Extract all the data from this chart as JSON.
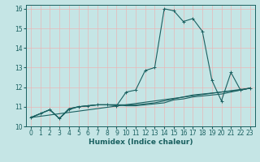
{
  "title": "",
  "xlabel": "Humidex (Indice chaleur)",
  "xlim": [
    -0.5,
    23.5
  ],
  "ylim": [
    10,
    16.2
  ],
  "yticks": [
    10,
    11,
    12,
    13,
    14,
    15,
    16
  ],
  "xticks": [
    0,
    1,
    2,
    3,
    4,
    5,
    6,
    7,
    8,
    9,
    10,
    11,
    12,
    13,
    14,
    15,
    16,
    17,
    18,
    19,
    20,
    21,
    22,
    23
  ],
  "bg_color": "#c5e5e5",
  "line_color": "#1a6060",
  "grid_color_v": "#e8b8b8",
  "grid_color_h": "#d8d0d0",
  "lines": [
    {
      "x": [
        0,
        1,
        2,
        3,
        4,
        5,
        6,
        7,
        8,
        9,
        10,
        11,
        12,
        13,
        14,
        15,
        16,
        17,
        18,
        19,
        20,
        21,
        22,
        23
      ],
      "y": [
        10.45,
        10.65,
        10.85,
        10.4,
        10.85,
        11.0,
        11.05,
        11.1,
        11.1,
        11.05,
        11.75,
        11.85,
        12.85,
        13.0,
        16.0,
        15.9,
        15.35,
        15.5,
        14.85,
        12.35,
        11.3,
        12.75,
        11.85,
        11.95
      ],
      "marker": true
    },
    {
      "x": [
        0,
        1,
        2,
        3,
        4,
        5,
        6,
        7,
        8,
        9,
        10,
        11,
        12,
        13,
        14,
        15,
        16,
        17,
        18,
        19,
        20,
        21,
        22,
        23
      ],
      "y": [
        10.45,
        10.65,
        10.85,
        10.4,
        10.9,
        11.0,
        11.05,
        11.1,
        11.1,
        11.1,
        11.1,
        11.1,
        11.15,
        11.2,
        11.3,
        11.4,
        11.5,
        11.6,
        11.65,
        11.7,
        11.75,
        11.8,
        11.85,
        11.95
      ],
      "marker": false
    },
    {
      "x": [
        0,
        23
      ],
      "y": [
        10.45,
        11.95
      ],
      "marker": false
    },
    {
      "x": [
        0,
        1,
        2,
        3,
        4,
        5,
        6,
        7,
        8,
        9,
        10,
        11,
        12,
        13,
        14,
        15,
        16,
        17,
        18,
        19,
        20,
        21,
        22,
        23
      ],
      "y": [
        10.45,
        10.65,
        10.85,
        10.4,
        10.9,
        11.0,
        11.05,
        11.1,
        11.1,
        11.1,
        11.05,
        11.05,
        11.1,
        11.15,
        11.2,
        11.35,
        11.4,
        11.5,
        11.55,
        11.6,
        11.65,
        11.75,
        11.85,
        11.95
      ],
      "marker": false
    }
  ],
  "tick_fontsize": 5.5,
  "xlabel_fontsize": 6.5
}
